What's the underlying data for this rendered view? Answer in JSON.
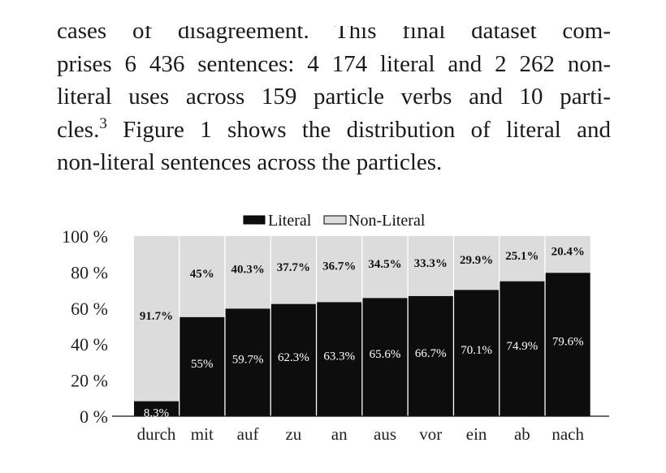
{
  "paragraph": {
    "lines": [
      "cases of disagreement.   This final dataset com-",
      "prises 6 436 sentences: 4 174 literal and 2 262 non-",
      "literal uses across 159 particle verbs and 10 parti-"
    ],
    "line4_before": "cles.",
    "footnote_mark": "3",
    "line4_after": " Figure 1 shows the distribution of literal and",
    "line5": "non-literal sentences across the particles."
  },
  "chart_data": {
    "type": "bar",
    "stacked": true,
    "categories": [
      "durch",
      "mit",
      "auf",
      "zu",
      "an",
      "aus",
      "vor",
      "ein",
      "ab",
      "nach"
    ],
    "series": [
      {
        "name": "Literal",
        "color": "#0d0d0d",
        "values": [
          8.3,
          55,
          59.7,
          62.3,
          63.3,
          65.6,
          66.7,
          70.1,
          74.9,
          79.6
        ],
        "labels": [
          "8.3%",
          "55%",
          "59.7%",
          "62.3%",
          "63.3%",
          "65.6%",
          "66.7%",
          "70.1%",
          "74.9%",
          "79.6%"
        ]
      },
      {
        "name": "Non-Literal",
        "color": "#dcdcdc",
        "values": [
          91.7,
          45,
          40.3,
          37.7,
          36.7,
          34.5,
          33.3,
          29.9,
          25.1,
          20.4
        ],
        "labels": [
          "91.7%",
          "45%",
          "40.3%",
          "37.7%",
          "36.7%",
          "34.5%",
          "33.3%",
          "29.9%",
          "25.1%",
          "20.4%"
        ]
      }
    ],
    "yticks": [
      0,
      20,
      40,
      60,
      80,
      100
    ],
    "ytick_labels": [
      "0 %",
      "20 %",
      "40 %",
      "60 %",
      "80 %",
      "100 %"
    ],
    "ylim": [
      0,
      100
    ],
    "legend_position": "top-center"
  }
}
